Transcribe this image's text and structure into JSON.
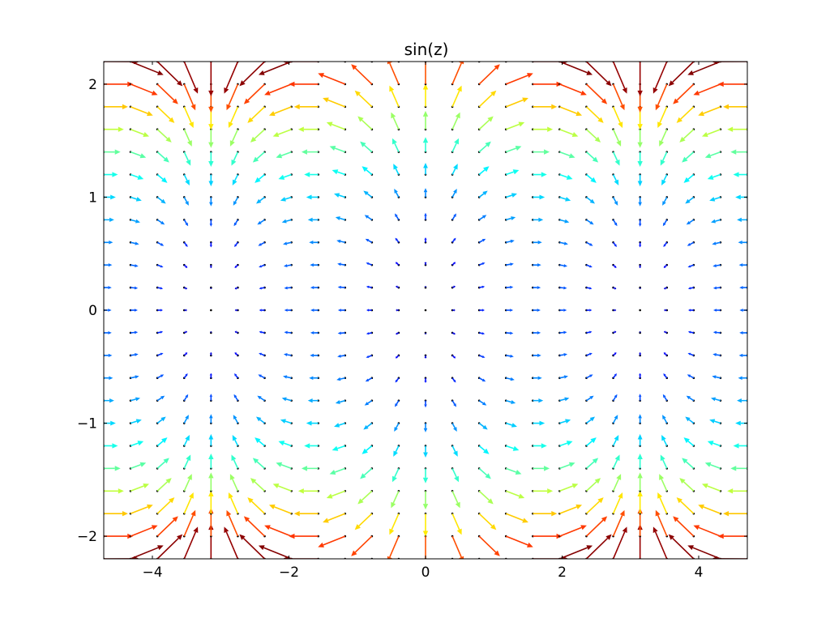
{
  "chart_data": {
    "type": "quiver",
    "title": "sin(z)",
    "xlabel": "",
    "ylabel": "",
    "xlim": [
      -4.712,
      4.712
    ],
    "ylim": [
      -2.2,
      2.2
    ],
    "xticks": [
      -4,
      -2,
      0,
      2,
      4
    ],
    "yticks": [
      -2,
      -1,
      0,
      1,
      2
    ],
    "xtick_labels": [
      "−4",
      "−2",
      "0",
      "2",
      "4"
    ],
    "ytick_labels": [
      "−2",
      "−1",
      "0",
      "1",
      "2"
    ],
    "grid": false,
    "field": {
      "function": "sin(z)",
      "x_start": -4.712,
      "x_end": 4.712,
      "x_count": 25,
      "y_start": -2.2,
      "y_end": 2.2,
      "y_count": 23,
      "color_by": "magnitude",
      "colormap": "jet"
    }
  }
}
